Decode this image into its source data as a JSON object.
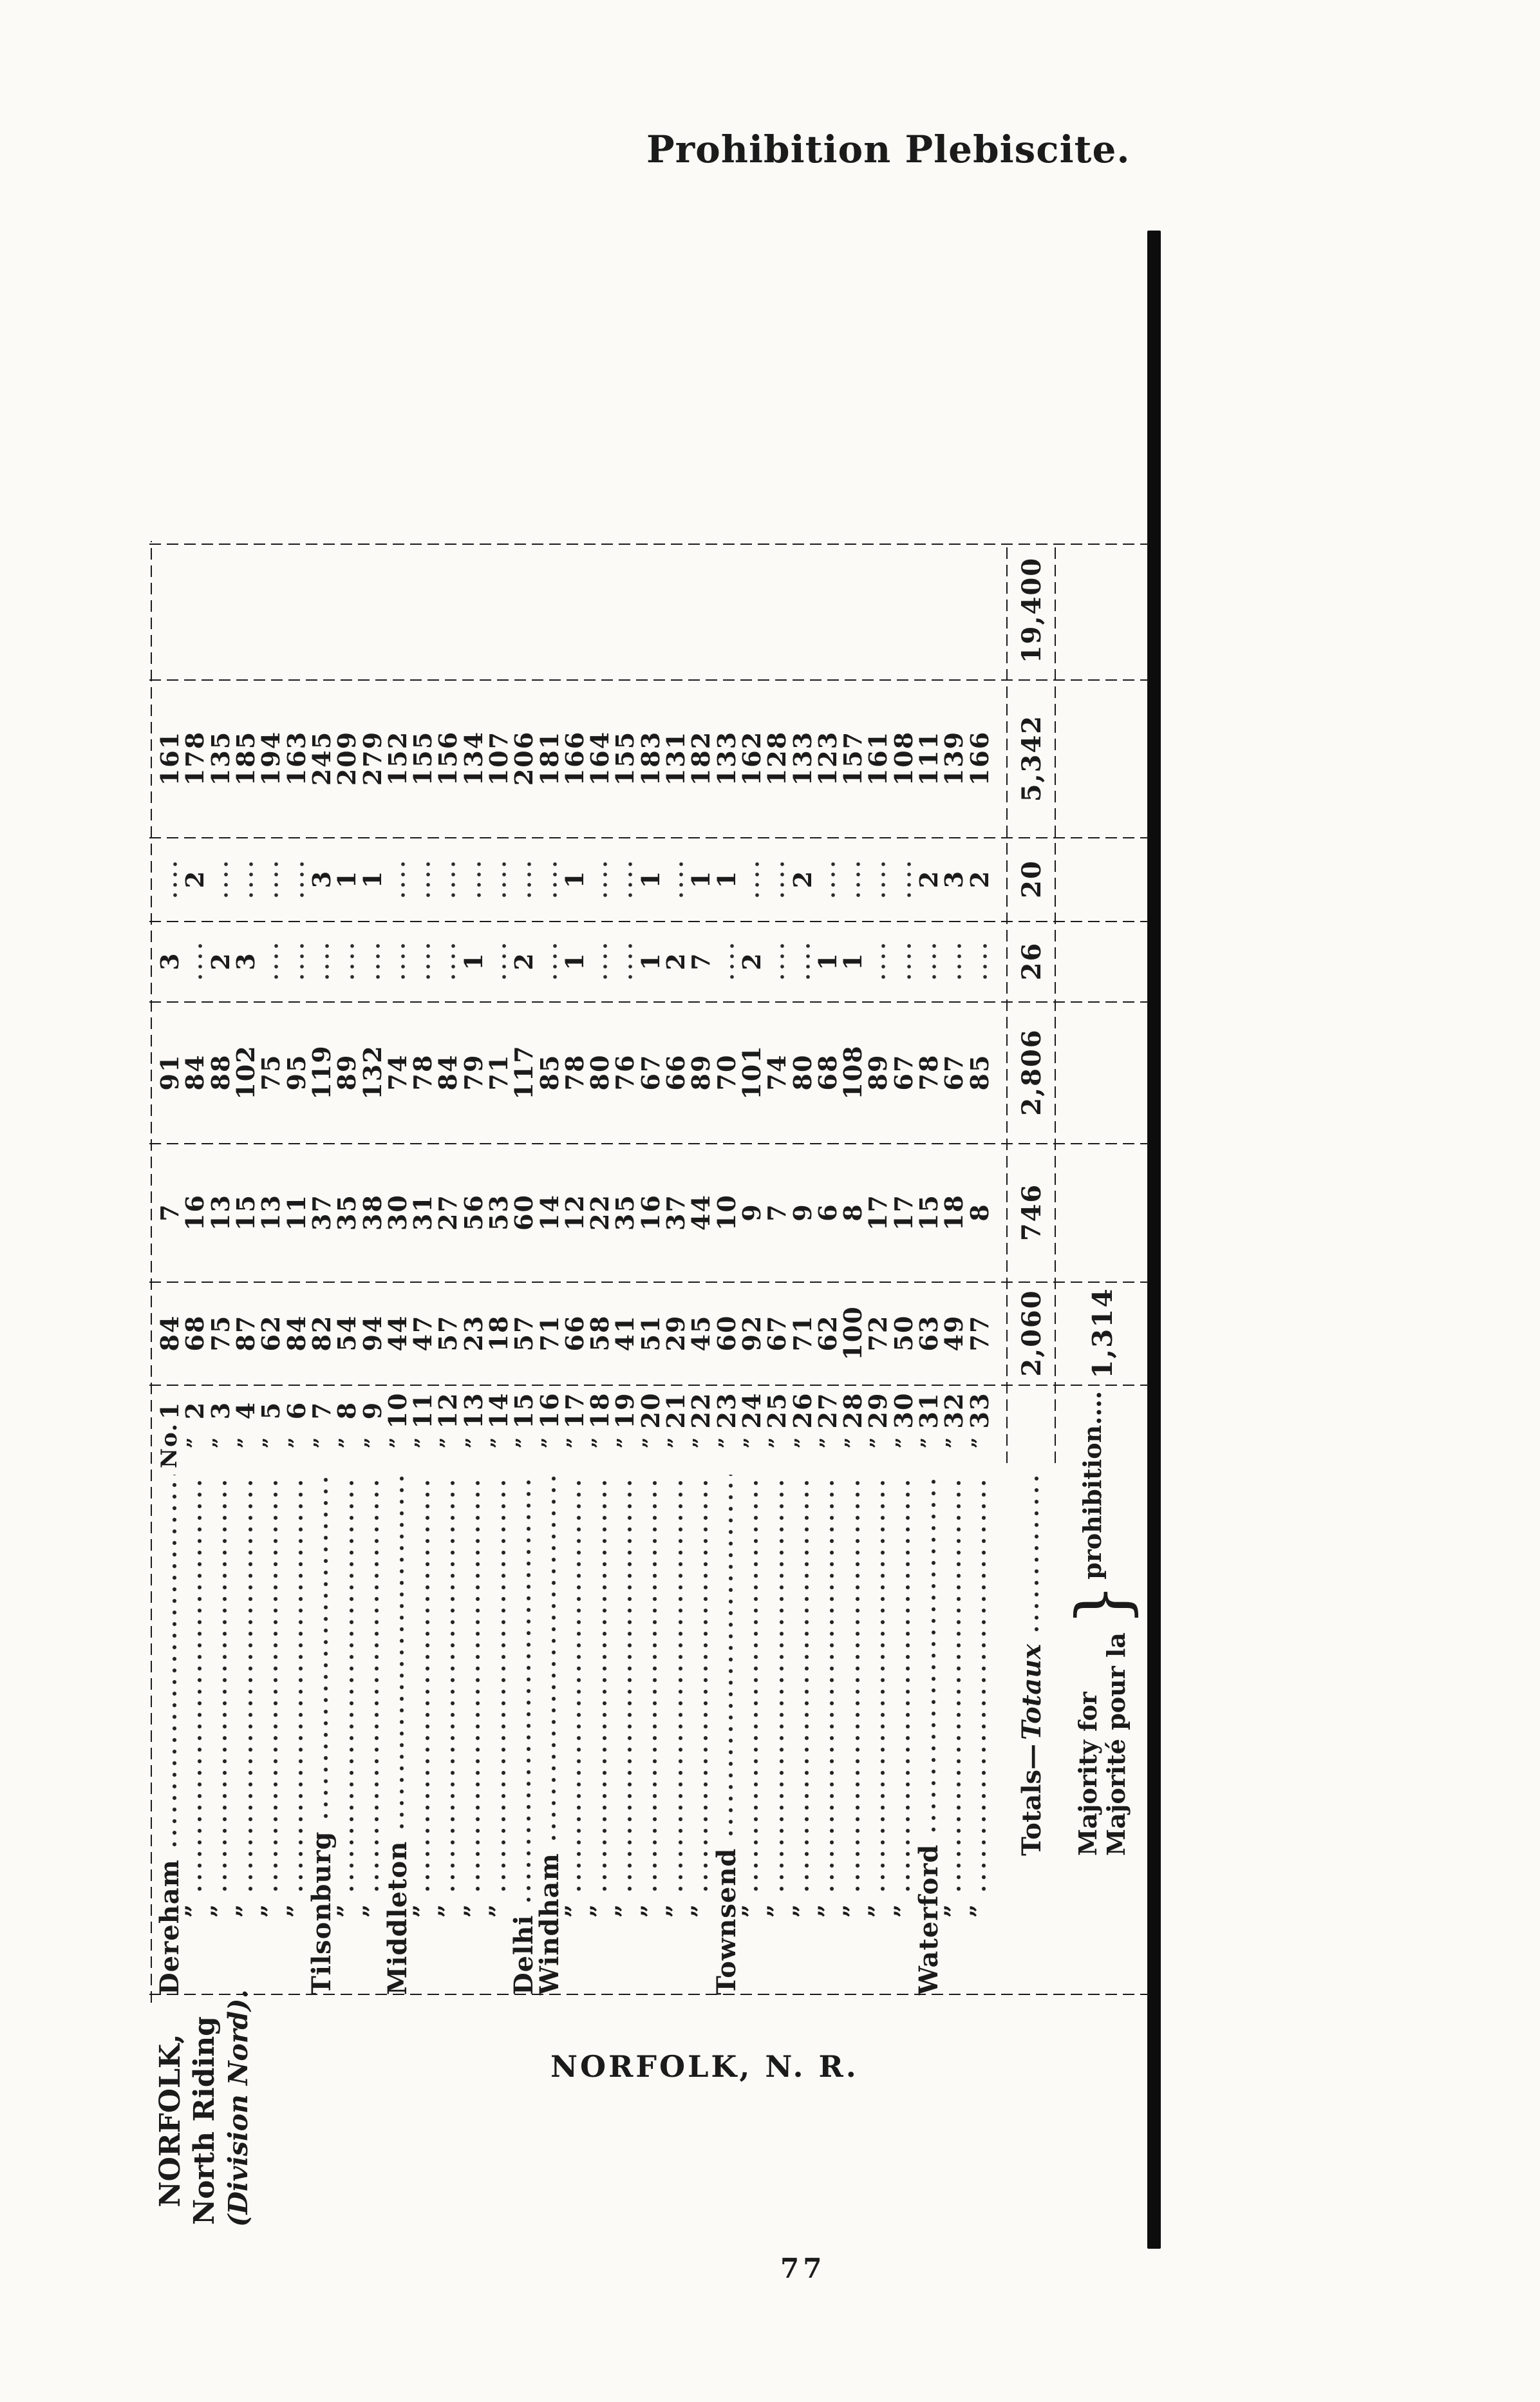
{
  "page": {
    "title": "Prohibition Plebiscite.",
    "footer_heading": "NORFOLK, N. R.",
    "page_number": "77",
    "margin_label": {
      "line1": "NORFOLK,",
      "line2": "North Riding",
      "line3": "(Division Nord)."
    },
    "ink_color": "#1b1b1b",
    "paper_color": "#fbfaf7"
  },
  "table": {
    "no_heading": "No.",
    "ditto_mark": "”",
    "totals_label_en": "Totals—",
    "totals_label_fr": "Totaux",
    "majority_label_line1": "Majority for",
    "majority_label_line2": "Majorité pour la",
    "majority_brace": "}",
    "majority_word": "prohibition....",
    "majority_value": "1,314",
    "totals": {
      "for": "2,060",
      "against": "746",
      "polled": "2,806",
      "col4": "26",
      "col5": "20",
      "names": "5,342",
      "col7": "19,400"
    },
    "rows": [
      {
        "no": "1",
        "name": "Dereham",
        "for": "84",
        "against": "7",
        "polled": "91",
        "col4": "3",
        "col5": "",
        "names": "161"
      },
      {
        "no": "2",
        "name": "\"",
        "for": "68",
        "against": "16",
        "polled": "84",
        "col4": "",
        "col5": "2",
        "names": "178"
      },
      {
        "no": "3",
        "name": "\"",
        "for": "75",
        "against": "13",
        "polled": "88",
        "col4": "2",
        "col5": "",
        "names": "135"
      },
      {
        "no": "4",
        "name": "\"",
        "for": "87",
        "against": "15",
        "polled": "102",
        "col4": "3",
        "col5": "",
        "names": "185"
      },
      {
        "no": "5",
        "name": "\"",
        "for": "62",
        "against": "13",
        "polled": "75",
        "col4": "",
        "col5": "",
        "names": "194"
      },
      {
        "no": "6",
        "name": "\"",
        "for": "84",
        "against": "11",
        "polled": "95",
        "col4": "",
        "col5": "",
        "names": "163"
      },
      {
        "no": "7",
        "name": "Tilsonburg",
        "for": "82",
        "against": "37",
        "polled": "119",
        "col4": "",
        "col5": "3",
        "names": "245"
      },
      {
        "no": "8",
        "name": "\"",
        "for": "54",
        "against": "35",
        "polled": "89",
        "col4": "",
        "col5": "1",
        "names": "209"
      },
      {
        "no": "9",
        "name": "\"",
        "for": "94",
        "against": "38",
        "polled": "132",
        "col4": "",
        "col5": "1",
        "names": "279"
      },
      {
        "no": "10",
        "name": "Middleton",
        "for": "44",
        "against": "30",
        "polled": "74",
        "col4": "",
        "col5": "",
        "names": "152"
      },
      {
        "no": "11",
        "name": "\"",
        "for": "47",
        "against": "31",
        "polled": "78",
        "col4": "",
        "col5": "",
        "names": "155"
      },
      {
        "no": "12",
        "name": "\"",
        "for": "57",
        "against": "27",
        "polled": "84",
        "col4": "",
        "col5": "",
        "names": "156"
      },
      {
        "no": "13",
        "name": "\"",
        "for": "23",
        "against": "56",
        "polled": "79",
        "col4": "1",
        "col5": "",
        "names": "134"
      },
      {
        "no": "14",
        "name": "\"",
        "for": "18",
        "against": "53",
        "polled": "71",
        "col4": "",
        "col5": "",
        "names": "107"
      },
      {
        "no": "15",
        "name": "Delhi",
        "for": "57",
        "against": "60",
        "polled": "117",
        "col4": "2",
        "col5": "",
        "names": "206"
      },
      {
        "no": "16",
        "name": "Windham",
        "for": "71",
        "against": "14",
        "polled": "85",
        "col4": "",
        "col5": "",
        "names": "181"
      },
      {
        "no": "17",
        "name": "\"",
        "for": "66",
        "against": "12",
        "polled": "78",
        "col4": "1",
        "col5": "1",
        "names": "166"
      },
      {
        "no": "18",
        "name": "\"",
        "for": "58",
        "against": "22",
        "polled": "80",
        "col4": "",
        "col5": "",
        "names": "164"
      },
      {
        "no": "19",
        "name": "\"",
        "for": "41",
        "against": "35",
        "polled": "76",
        "col4": "",
        "col5": "",
        "names": "155"
      },
      {
        "no": "20",
        "name": "\"",
        "for": "51",
        "against": "16",
        "polled": "67",
        "col4": "1",
        "col5": "1",
        "names": "183"
      },
      {
        "no": "21",
        "name": "\"",
        "for": "29",
        "against": "37",
        "polled": "66",
        "col4": "2",
        "col5": "",
        "names": "131"
      },
      {
        "no": "22",
        "name": "\"",
        "for": "45",
        "against": "44",
        "polled": "89",
        "col4": "7",
        "col5": "1",
        "names": "182"
      },
      {
        "no": "23",
        "name": "Townsend",
        "for": "60",
        "against": "10",
        "polled": "70",
        "col4": "",
        "col5": "1",
        "names": "133"
      },
      {
        "no": "24",
        "name": "\"",
        "for": "92",
        "against": "9",
        "polled": "101",
        "col4": "2",
        "col5": "",
        "names": "162"
      },
      {
        "no": "25",
        "name": "\"",
        "for": "67",
        "against": "7",
        "polled": "74",
        "col4": "",
        "col5": "",
        "names": "128"
      },
      {
        "no": "26",
        "name": "\"",
        "for": "71",
        "against": "9",
        "polled": "80",
        "col4": "",
        "col5": "2",
        "names": "133"
      },
      {
        "no": "27",
        "name": "\"",
        "for": "62",
        "against": "6",
        "polled": "68",
        "col4": "1",
        "col5": "",
        "names": "123"
      },
      {
        "no": "28",
        "name": "\"",
        "for": "100",
        "against": "8",
        "polled": "108",
        "col4": "1",
        "col5": "",
        "names": "157"
      },
      {
        "no": "29",
        "name": "\"",
        "for": "72",
        "against": "17",
        "polled": "89",
        "col4": "",
        "col5": "",
        "names": "161"
      },
      {
        "no": "30",
        "name": "\"",
        "for": "50",
        "against": "17",
        "polled": "67",
        "col4": "",
        "col5": "",
        "names": "108"
      },
      {
        "no": "31",
        "name": "Waterford",
        "for": "63",
        "against": "15",
        "polled": "78",
        "col4": "",
        "col5": "2",
        "names": "111"
      },
      {
        "no": "32",
        "name": "\"",
        "for": "49",
        "against": "18",
        "polled": "67",
        "col4": "",
        "col5": "3",
        "names": "139"
      },
      {
        "no": "33",
        "name": "\"",
        "for": "77",
        "against": "8",
        "polled": "85",
        "col4": "",
        "col5": "2",
        "names": "166"
      }
    ]
  }
}
